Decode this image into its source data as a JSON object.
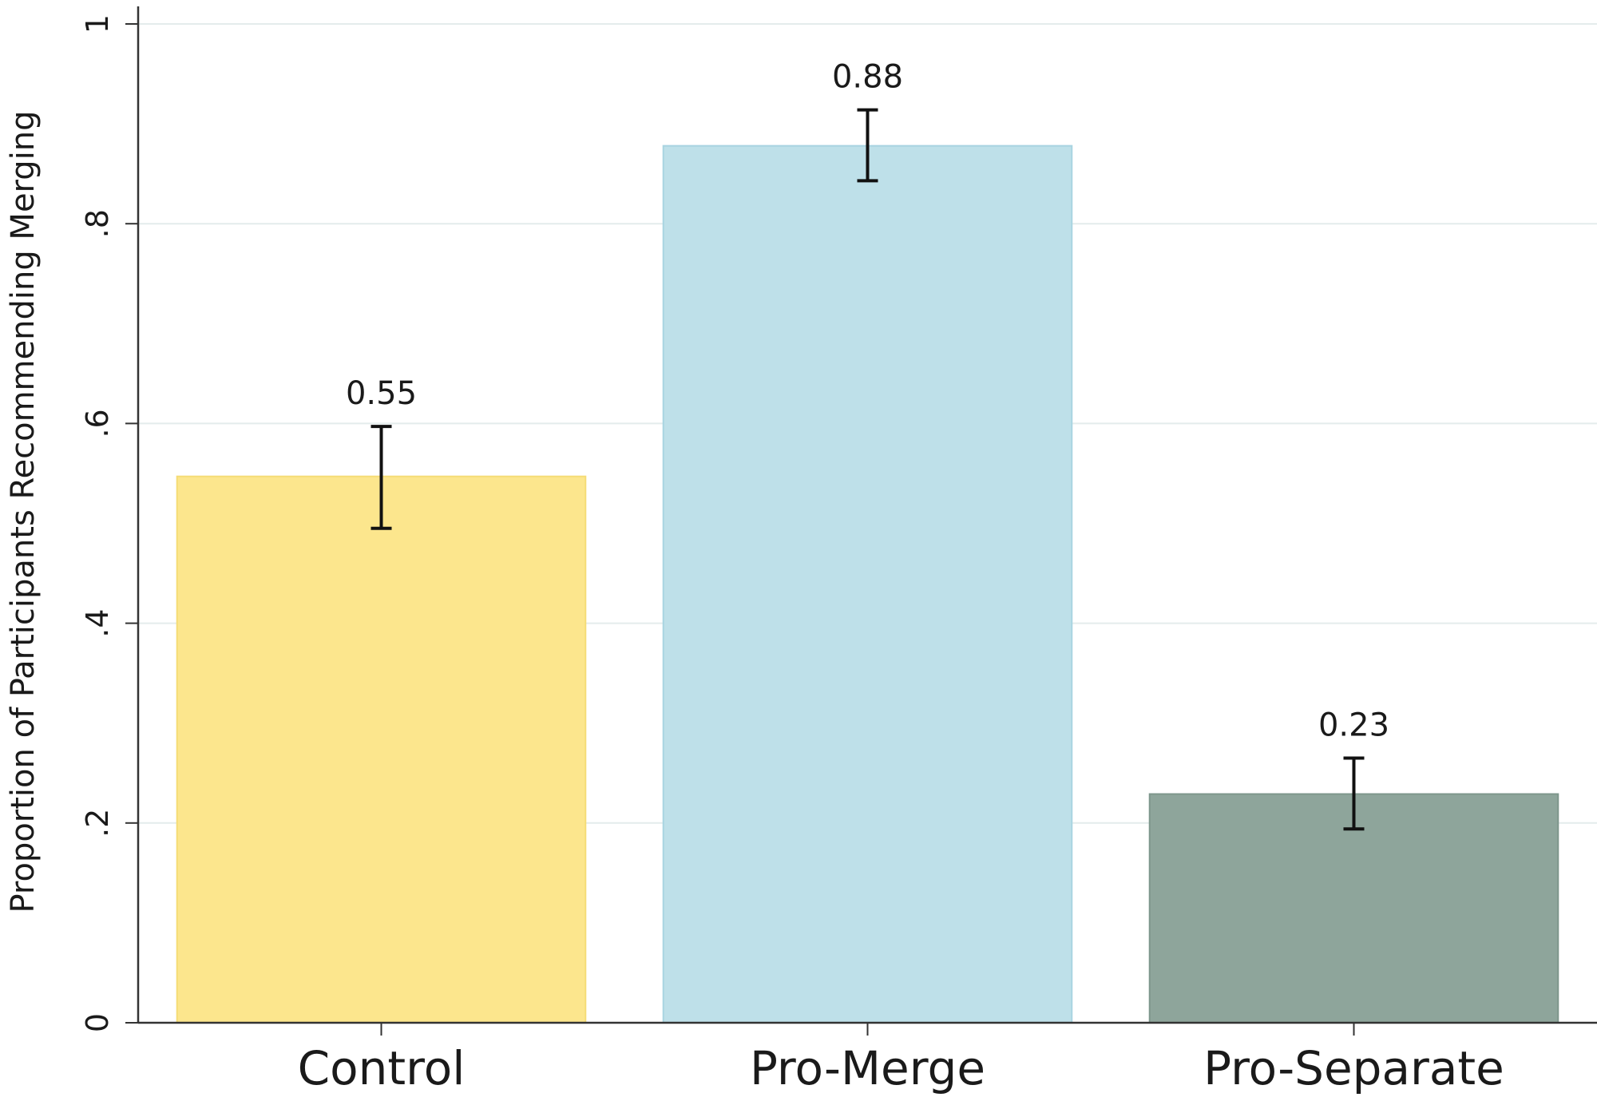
{
  "chart_data": {
    "type": "bar",
    "title": "",
    "xlabel": "",
    "ylabel": "Proportion of Participants Recommending Merging",
    "categories": [
      "Control",
      "Pro-Merge",
      "Pro-Separate"
    ],
    "values": [
      0.547,
      0.878,
      0.229
    ],
    "data_labels": [
      "0.55",
      "0.88",
      "0.23"
    ],
    "error_bars": [
      {
        "low": 0.495,
        "high": 0.597
      },
      {
        "low": 0.843,
        "high": 0.914
      },
      {
        "low": 0.194,
        "high": 0.265
      }
    ],
    "ylim": [
      0,
      1
    ],
    "yticks": [
      0,
      0.2,
      0.4,
      0.6,
      0.8,
      1
    ],
    "ytick_labels": [
      "0",
      ".2",
      ".4",
      ".6",
      ".8",
      "1"
    ],
    "grid": true,
    "legend": "none",
    "colors": {
      "bars": [
        "#fce68d",
        "#bee0e9",
        "#8ea59b"
      ],
      "bar_edges": [
        "#f5dc76",
        "#a9d4e1",
        "#7e978c"
      ],
      "gridline": "#e4ecec",
      "axis": "#333333",
      "error_bar": "#111111"
    }
  }
}
